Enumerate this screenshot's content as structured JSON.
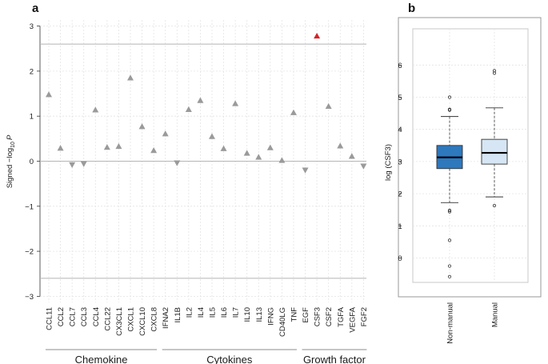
{
  "chart_data": [
    {
      "panel": "a",
      "type": "scatter",
      "ylabel": "Signed -log10 P",
      "ylabel_parts": {
        "prefix": "Signed −log",
        "sub": "10",
        "italic": "P"
      },
      "ylim": [
        -3.1,
        3.15
      ],
      "yticks": [
        3,
        2,
        1,
        0,
        -1,
        -2,
        -3
      ],
      "ytick_labels": [
        "3",
        "2",
        "1",
        "0",
        "−1",
        "−2",
        "−3"
      ],
      "significance_threshold": 2.6,
      "categories": [
        "CCL11",
        "CCL2",
        "CCL7",
        "CCL3",
        "CCL4",
        "CCL22",
        "CX3CL1",
        "CXCL1",
        "CXCL10",
        "CXCL8",
        "IFNA2",
        "IL1B",
        "IL2",
        "IL4",
        "IL5",
        "IL6",
        "IL7",
        "IL10",
        "IL13",
        "IFNG",
        "CD40LG",
        "TNF",
        "EGF",
        "CSF3",
        "CSF2",
        "TGFA",
        "VEGFA",
        "FGF2"
      ],
      "values": [
        1.48,
        0.29,
        -0.08,
        -0.06,
        1.14,
        0.31,
        0.33,
        1.85,
        0.77,
        0.24,
        0.61,
        -0.04,
        1.15,
        1.35,
        0.55,
        0.28,
        1.28,
        0.18,
        0.09,
        0.3,
        0.02,
        1.08,
        -0.2,
        2.78,
        1.22,
        0.34,
        0.11,
        -0.11
      ],
      "highlight_index": 23,
      "groups": [
        {
          "label": "Chemokine",
          "from": 0,
          "to": 9
        },
        {
          "label": "Cytokines",
          "from": 10,
          "to": 21
        },
        {
          "label": "Growth factor",
          "from": 22,
          "to": 27
        }
      ]
    },
    {
      "panel": "b",
      "type": "box",
      "ylabel": "log (CSF3)",
      "ylim": [
        -0.8,
        6.65
      ],
      "yticks": [
        0,
        1,
        2,
        3,
        4,
        5,
        6
      ],
      "ytick_labels": [
        "0",
        "1",
        "2",
        "3",
        "4",
        "5",
        "6"
      ],
      "categories": [
        "Non-manual",
        "Manual"
      ],
      "boxes": [
        {
          "name": "Non-manual",
          "color": "#2e78bd",
          "q1": 2.78,
          "median": 3.13,
          "q3": 3.5,
          "whisker_low": 1.72,
          "whisker_high": 4.4,
          "outliers": [
            5.0,
            4.62,
            4.6,
            1.48,
            1.44,
            0.55,
            -0.25,
            -0.58
          ]
        },
        {
          "name": "Manual",
          "color": "#d6e6f4",
          "q1": 2.92,
          "median": 3.27,
          "q3": 3.69,
          "whisker_low": 1.9,
          "whisker_high": 4.67,
          "outliers": [
            5.82,
            5.75,
            1.63
          ]
        }
      ]
    }
  ]
}
